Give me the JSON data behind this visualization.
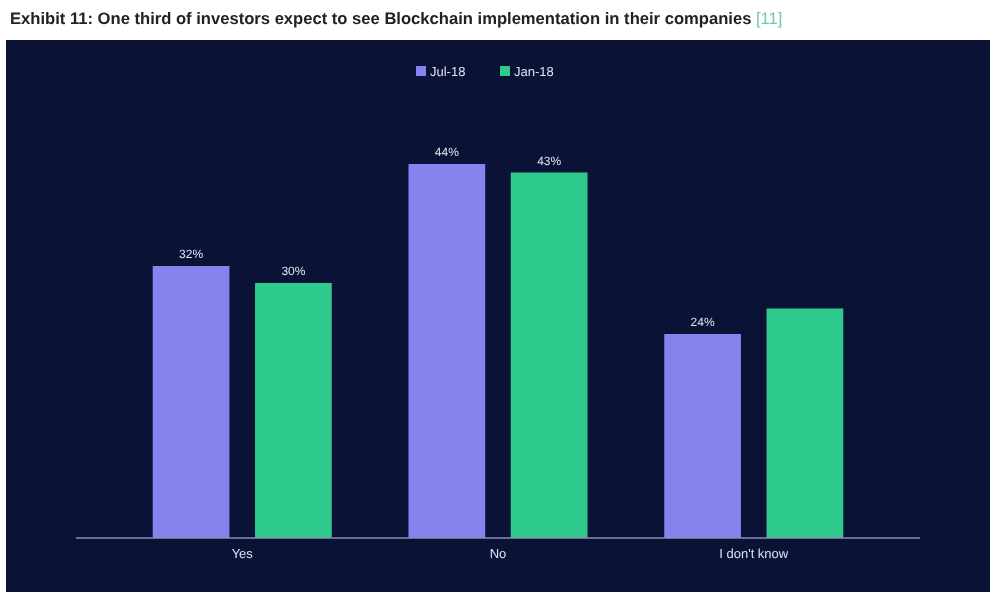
{
  "chart_data": {
    "type": "bar",
    "title": "Exhibit 11: One third of investors expect to see Blockchain implementation in their companies",
    "annotations": [
      "[11]"
    ],
    "categories": [
      "Yes",
      "No",
      "I don't know"
    ],
    "series": [
      {
        "name": "Jul-18",
        "color": "#8682ee",
        "values": [
          32,
          44,
          24
        ],
        "value_labels": [
          "32%",
          "44%",
          "24%"
        ]
      },
      {
        "name": "Jan-18",
        "color": "#2fcb8c",
        "values": [
          30,
          43,
          27
        ],
        "value_labels": [
          "30%",
          "43%",
          null
        ]
      }
    ],
    "legend": "top"
  }
}
